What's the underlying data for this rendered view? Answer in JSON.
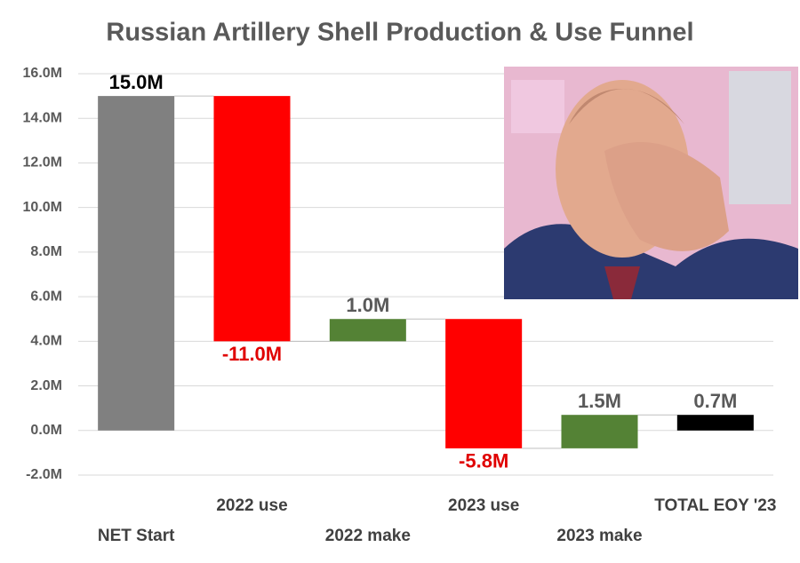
{
  "chart_data": {
    "type": "waterfall",
    "title": "Russian Artillery Shell Production & Use Funnel",
    "categories": [
      "NET Start",
      "2022 use",
      "2022 make",
      "2023 use",
      "2023 make",
      "TOTAL EOY '23"
    ],
    "values": [
      15.0,
      -11.0,
      1.0,
      -5.8,
      1.5,
      0.7
    ],
    "value_labels": [
      "15.0M",
      "-11.0M",
      "1.0M",
      "-5.8M",
      "1.5M",
      "0.7M"
    ],
    "is_total": [
      true,
      false,
      false,
      false,
      false,
      true
    ],
    "colors": [
      "#808080",
      "#ff0000",
      "#548235",
      "#ff0000",
      "#548235",
      "#000000"
    ],
    "value_label_colors": [
      "#000000",
      "#e00000",
      "#595959",
      "#e00000",
      "#595959",
      "#595959"
    ],
    "ylim": [
      -2,
      16
    ],
    "yticks": [
      {
        "value": -2,
        "label": "-2.0M"
      },
      {
        "value": 0,
        "label": "0.0M"
      },
      {
        "value": 2,
        "label": "2.0M"
      },
      {
        "value": 4,
        "label": "4.0M"
      },
      {
        "value": 6,
        "label": "6.0M"
      },
      {
        "value": 8,
        "label": "8.0M"
      },
      {
        "value": 10,
        "label": "10.0M"
      },
      {
        "value": 12,
        "label": "12.0M"
      },
      {
        "value": 14,
        "label": "14.0M"
      },
      {
        "value": 16,
        "label": "16.0M"
      }
    ],
    "grid": true
  }
}
